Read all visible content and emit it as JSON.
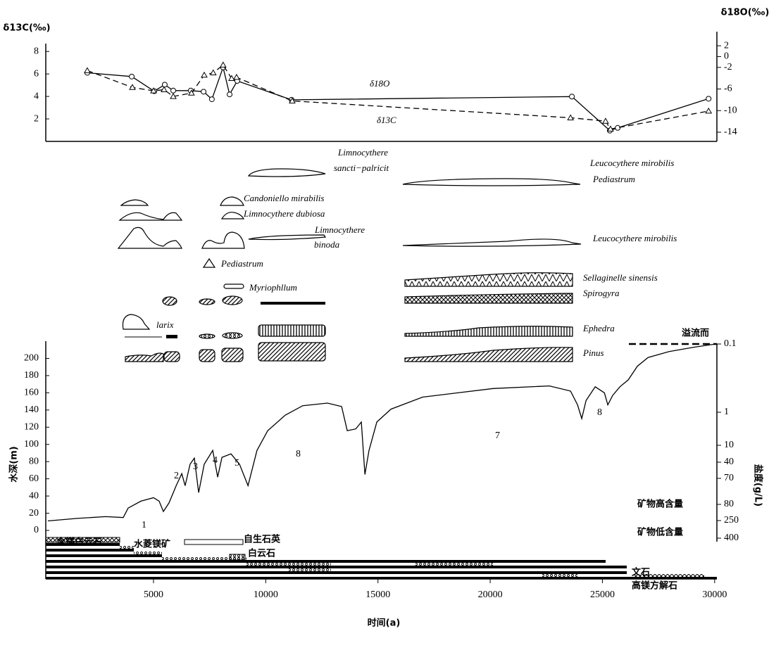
{
  "chart_data": [
    {
      "type": "line",
      "y_label": "δ13C(‰)",
      "y2_label": "δ18O(‰)",
      "xlim": [
        200,
        30100
      ],
      "ylim": [
        0,
        8.7
      ],
      "yticks": [
        2,
        4,
        6,
        8
      ],
      "y2lim": [
        -15.7,
        2.4
      ],
      "y2ticks": [
        2,
        0,
        -2,
        -6,
        -10,
        -14
      ],
      "series": [
        {
          "name": "δ18O",
          "color": "#000000",
          "style": "solid",
          "marker": "circle",
          "axis": "y2",
          "x": [
            2050,
            4030,
            5030,
            5500,
            5880,
            6660,
            7230,
            7600,
            8100,
            8390,
            8730,
            11150,
            23640,
            25330,
            25680,
            29730
          ],
          "values": [
            -3.0,
            -3.7,
            -6.4,
            -5.2,
            -6.3,
            -6.3,
            -6.5,
            -7.9,
            -2.0,
            -7.0,
            -4.5,
            -8.0,
            -7.4,
            -13.7,
            -13.2,
            -7.8
          ]
        },
        {
          "name": "δ13C",
          "color": "#000000",
          "style": "dashed",
          "marker": "triangle",
          "x": [
            2050,
            4060,
            5000,
            5470,
            5880,
            6690,
            7260,
            7660,
            8100,
            8480,
            8700,
            11180,
            23580,
            25140,
            25360,
            29730
          ],
          "values": [
            6.3,
            4.8,
            4.5,
            4.6,
            4.0,
            4.3,
            5.9,
            6.1,
            6.8,
            5.6,
            5.7,
            3.6,
            2.1,
            1.8,
            1.1,
            2.7
          ]
        }
      ]
    },
    {
      "type": "line",
      "x_label": "时间(a)",
      "y_label": "水深(m)",
      "y2_label": "盐度(g/L)",
      "xlim": [
        200,
        30100
      ],
      "xticks": [
        5000,
        10000,
        15000,
        20000,
        25000,
        30000
      ],
      "ylim": [
        0,
        220
      ],
      "yticks": [
        0,
        20,
        40,
        60,
        80,
        100,
        120,
        140,
        160,
        180,
        200
      ],
      "y2ticks": [
        0.1,
        1,
        10,
        40,
        70,
        80,
        250,
        400
      ],
      "series": [
        {
          "color": "#000000",
          "style": "solid",
          "x": [
            290,
            1610,
            2870,
            3650,
            3870,
            4440,
            5000,
            5250,
            5440,
            5690,
            6010,
            6260,
            6410,
            6630,
            6820,
            7010,
            7260,
            7640,
            7860,
            8050,
            8450,
            8830,
            9210,
            9610,
            10090,
            10870,
            11650,
            12750,
            13380,
            13630,
            14010,
            14260,
            14420,
            14600,
            14950,
            15580,
            16990,
            18560,
            20130,
            22640,
            23580,
            23890,
            24080,
            24270,
            24680,
            25090,
            25240,
            25460,
            25780,
            26150,
            26560,
            27030,
            27970,
            29070,
            30110
          ],
          "values": [
            11,
            14,
            16,
            15,
            26,
            34,
            38,
            34,
            22,
            32,
            52,
            66,
            52,
            77,
            84,
            44,
            77,
            93,
            62,
            85,
            89,
            77,
            52,
            93,
            116,
            134,
            145,
            148,
            144,
            116,
            118,
            126,
            65,
            93,
            126,
            141,
            155,
            160,
            165,
            168,
            162,
            146,
            130,
            151,
            167,
            160,
            146,
            157,
            167,
            175,
            191,
            201,
            208,
            213,
            217
          ]
        }
      ]
    }
  ],
  "curve_labels": [
    "1",
    "2",
    "3",
    "4",
    "5",
    "8",
    "7",
    "8"
  ],
  "taxa_labels": [
    "Limnocythere",
    "sancti−palricit",
    "Leucocythere mirobilis",
    "Pediastrum",
    "Candoniello mirabilis",
    "Limnocythere dubiosa",
    "Limnocythere",
    "binoda",
    "Leucocythere mirobilis",
    "Pediastrum",
    "Myriophllum",
    "Sellaginelle sinensis",
    "Spirogyra",
    "larix",
    "Ephedra",
    "Pinus"
  ],
  "mineral_labels": [
    "含镁白云石",
    "水菱镁矿",
    "自生石英",
    "白云石",
    "文石",
    "高镁方解石",
    "矿物高含量",
    "矿物低含量"
  ],
  "overflow_label": "溢流而"
}
